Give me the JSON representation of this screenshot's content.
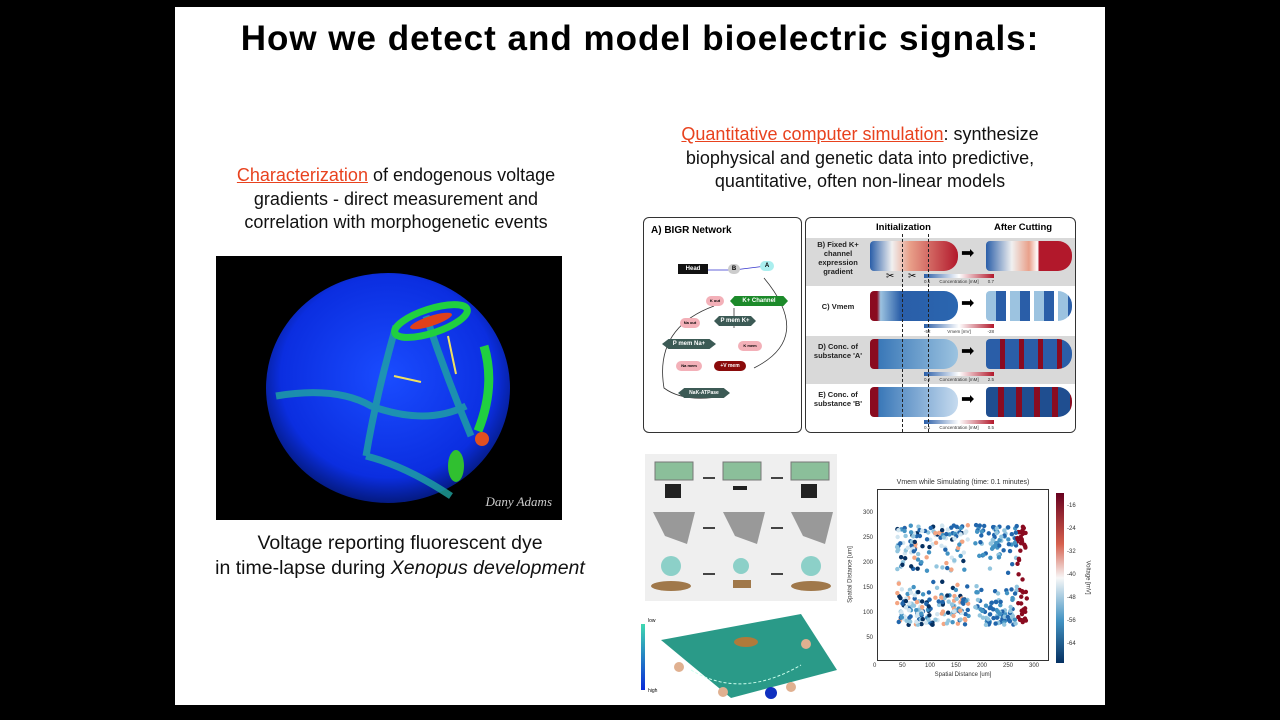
{
  "title": "How we detect and model bioelectric signals:",
  "left": {
    "highlight": "Characterization",
    "text_lines": [
      " of endogenous voltage",
      "gradients - direct measurement and",
      "correlation with morphogenetic events"
    ],
    "image_credit": "Dany Adams",
    "caption_line1": "Voltage reporting fluorescent dye",
    "caption_line2_prefix": "in time-lapse during ",
    "caption_line2_italic": "Xenopus development"
  },
  "right": {
    "highlight": "Quantitative computer simulation",
    "text_lines": [
      ": synthesize",
      "biophysical and genetic data into predictive,",
      "quantitative, often non-linear models"
    ]
  },
  "bigr": {
    "title": "A) BIGR Network",
    "nodes": [
      "Head",
      "B",
      "A",
      "K+ Channel",
      "K out",
      "P mem K+",
      "Na out",
      "P mem Na+",
      "K mem",
      "Na mem",
      "+V mem",
      "NaK-ATPase"
    ]
  },
  "sim": {
    "col_init": "Initialization",
    "col_after": "After Cutting",
    "rows": [
      {
        "label": "B) Fixed K+ channel expression gradient",
        "cb_min": "0.1",
        "cb_max": "0.7",
        "cb_label": "Concentration [mM]"
      },
      {
        "label": "C) Vmem",
        "cb_min": "-52",
        "cb_max": "-28",
        "cb_label": "Vmem [mV]"
      },
      {
        "label": "D) Conc. of substance 'A'",
        "cb_min": "0.2",
        "cb_max": "2.5",
        "cb_label": "Concentration [mM]"
      },
      {
        "label": "E) Conc. of substance 'B'",
        "cb_min": "0.1",
        "cb_max": "0.5",
        "cb_label": "Concentration [mM]"
      }
    ]
  },
  "landscape": {
    "low": "low",
    "high": "high"
  },
  "plot": {
    "title": "Vmem while Simulating (time: 0.1 minutes)",
    "xlabel": "Spatial Distance [um]",
    "ylabel": "Spatial Distance [um]",
    "cbar_label": "Voltage [mV]",
    "xticks": [
      "0",
      "50",
      "100",
      "150",
      "200",
      "250",
      "300"
    ],
    "yticks": [
      "50",
      "100",
      "150",
      "200",
      "250",
      "300"
    ],
    "cbar_ticks": [
      "-16",
      "-24",
      "-32",
      "-40",
      "-48",
      "-56",
      "-64"
    ]
  }
}
